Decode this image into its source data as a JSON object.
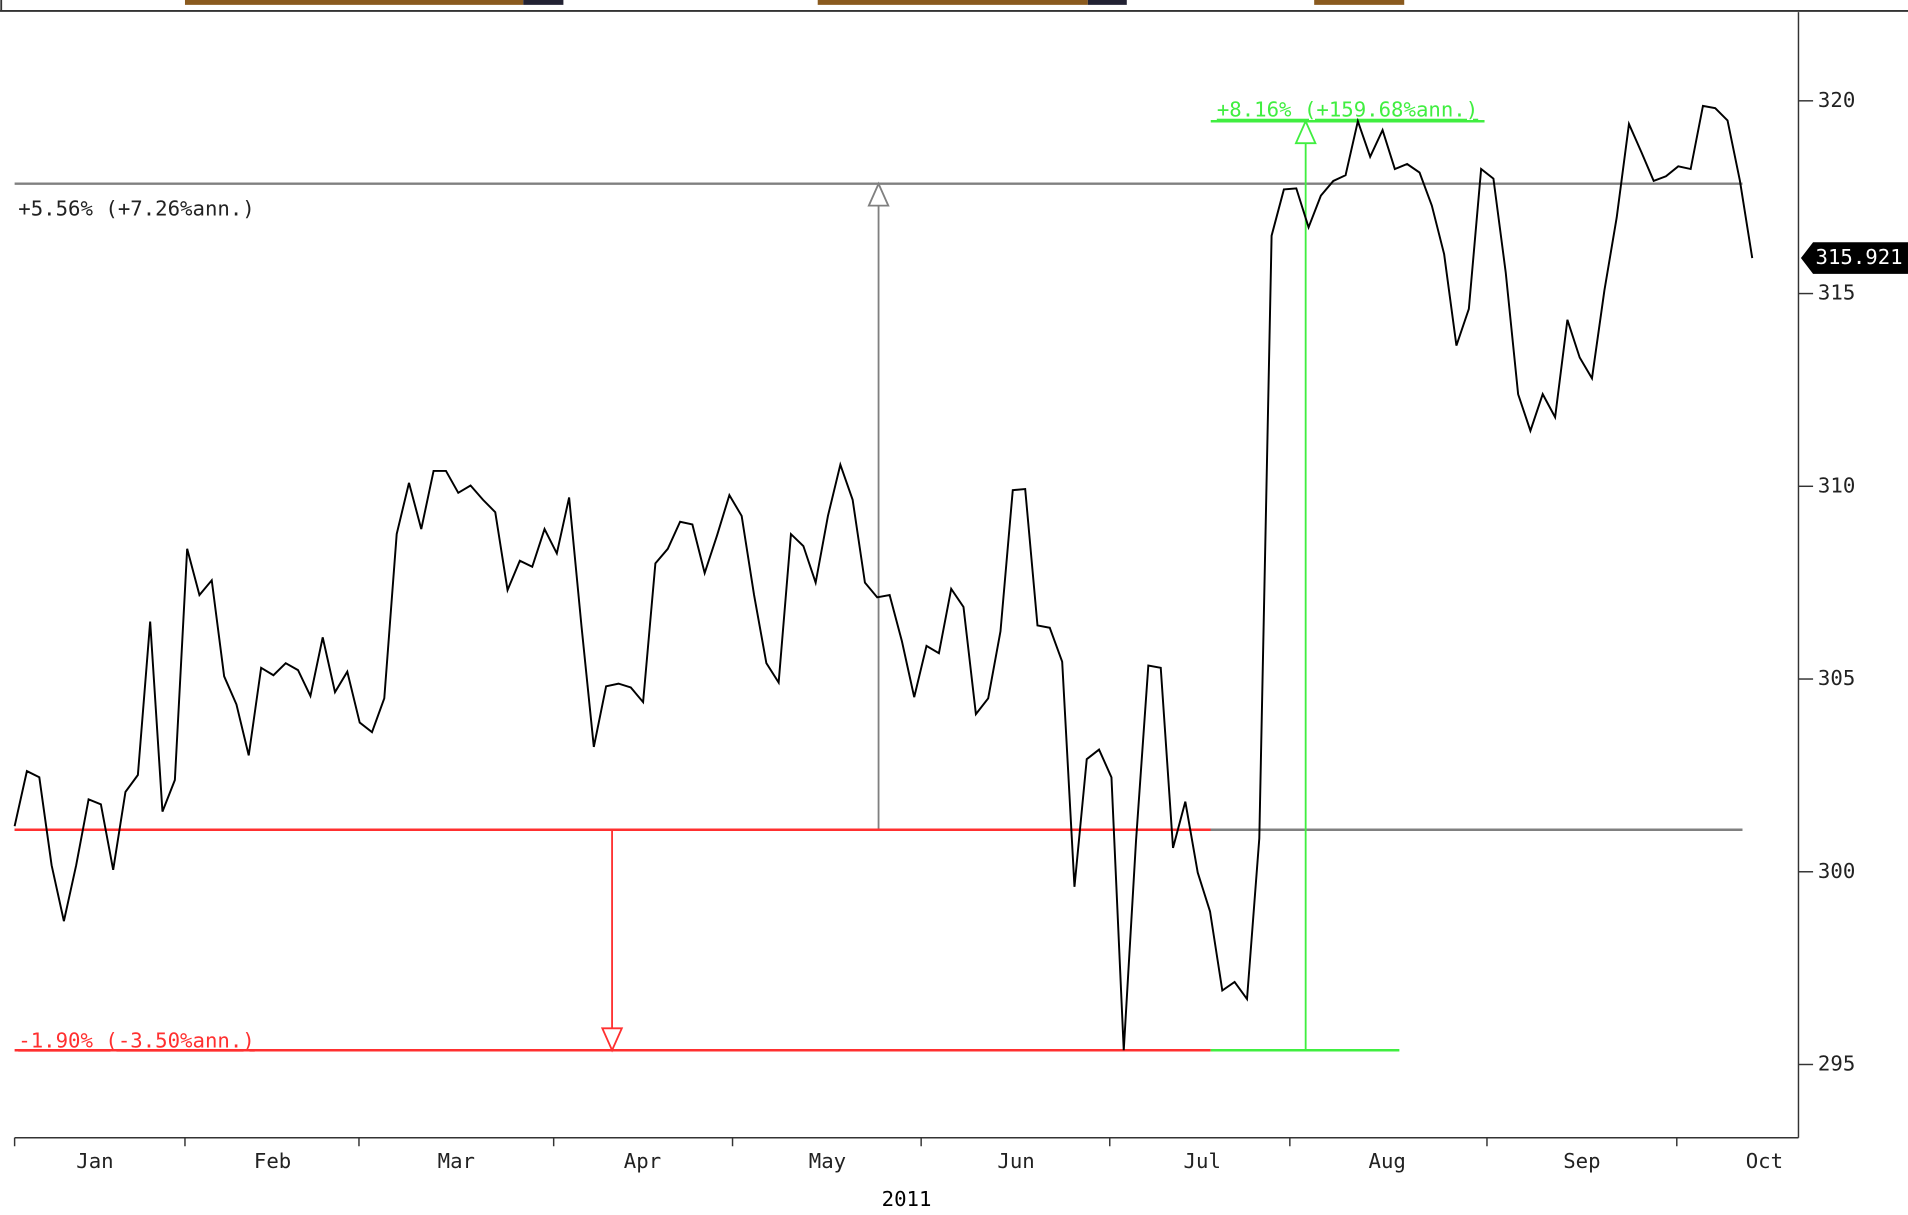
{
  "chart_data": {
    "type": "line",
    "x_title": "2011",
    "months": [
      "Jan",
      "Feb",
      "Mar",
      "Apr",
      "May",
      "Jun",
      "Jul",
      "Aug",
      "Sep",
      "Oct"
    ],
    "ylim": [
      293.1,
      322.3
    ],
    "yticks": [
      295,
      300,
      305,
      310,
      315,
      320
    ],
    "last_value": {
      "value": 315.921,
      "label": "315.921"
    },
    "series": [
      {
        "color": "#000000",
        "values": [
          301.18,
          302.61,
          302.45,
          300.17,
          298.72,
          300.17,
          301.88,
          301.75,
          300.05,
          302.07,
          302.51,
          306.49,
          301.56,
          302.38,
          308.38,
          307.18,
          307.56,
          305.07,
          304.34,
          303.02,
          305.29,
          305.1,
          305.41,
          305.23,
          304.56,
          306.08,
          304.66,
          305.19,
          303.87,
          303.62,
          304.5,
          308.76,
          310.09,
          308.89,
          310.4,
          310.4,
          309.83,
          310.02,
          309.65,
          309.33,
          307.31,
          308.07,
          307.91,
          308.89,
          308.26,
          309.71,
          306.36,
          303.24,
          304.81,
          304.88,
          304.78,
          304.4,
          308.0,
          308.38,
          309.08,
          309.01,
          307.75,
          308.73,
          309.77,
          309.23,
          307.18,
          305.41,
          304.91,
          308.76,
          308.45,
          307.5,
          309.23,
          310.56,
          309.65,
          307.5,
          307.12,
          307.18,
          305.98,
          304.53,
          305.86,
          305.67,
          307.34,
          306.87,
          304.09,
          304.5,
          306.24,
          309.9,
          309.93,
          306.39,
          306.33,
          305.45,
          299.61,
          302.92,
          303.17,
          302.45,
          295.37,
          300.81,
          305.35,
          305.29,
          300.62,
          301.82,
          299.98,
          298.97,
          296.92,
          297.14,
          296.7,
          300.87,
          316.5,
          317.7,
          317.73,
          316.72,
          317.54,
          317.92,
          318.07,
          319.47,
          318.55,
          319.24,
          318.23,
          318.36,
          318.14,
          317.28,
          316.02,
          313.65,
          314.6,
          318.23,
          317.98,
          315.55,
          312.39,
          311.44,
          312.39,
          311.79,
          314.32,
          313.34,
          312.8,
          315.08,
          316.97,
          319.4,
          318.67,
          317.92,
          318.04,
          318.3,
          318.23,
          319.87,
          319.81,
          319.49,
          317.92,
          315.921
        ]
      }
    ],
    "annotations": [
      {
        "label": "+5.56% (+7.26%ann.)",
        "color": "#808080",
        "from": 301.09,
        "to": 317.85
      },
      {
        "label": "-1.90% (-3.50%ann.)",
        "color": "#ff3030",
        "from": 301.09,
        "to": 295.37
      },
      {
        "label": "+8.16% (+159.68%ann.)",
        "color": "#40ee40",
        "from": 295.37,
        "to": 319.47
      }
    ]
  }
}
